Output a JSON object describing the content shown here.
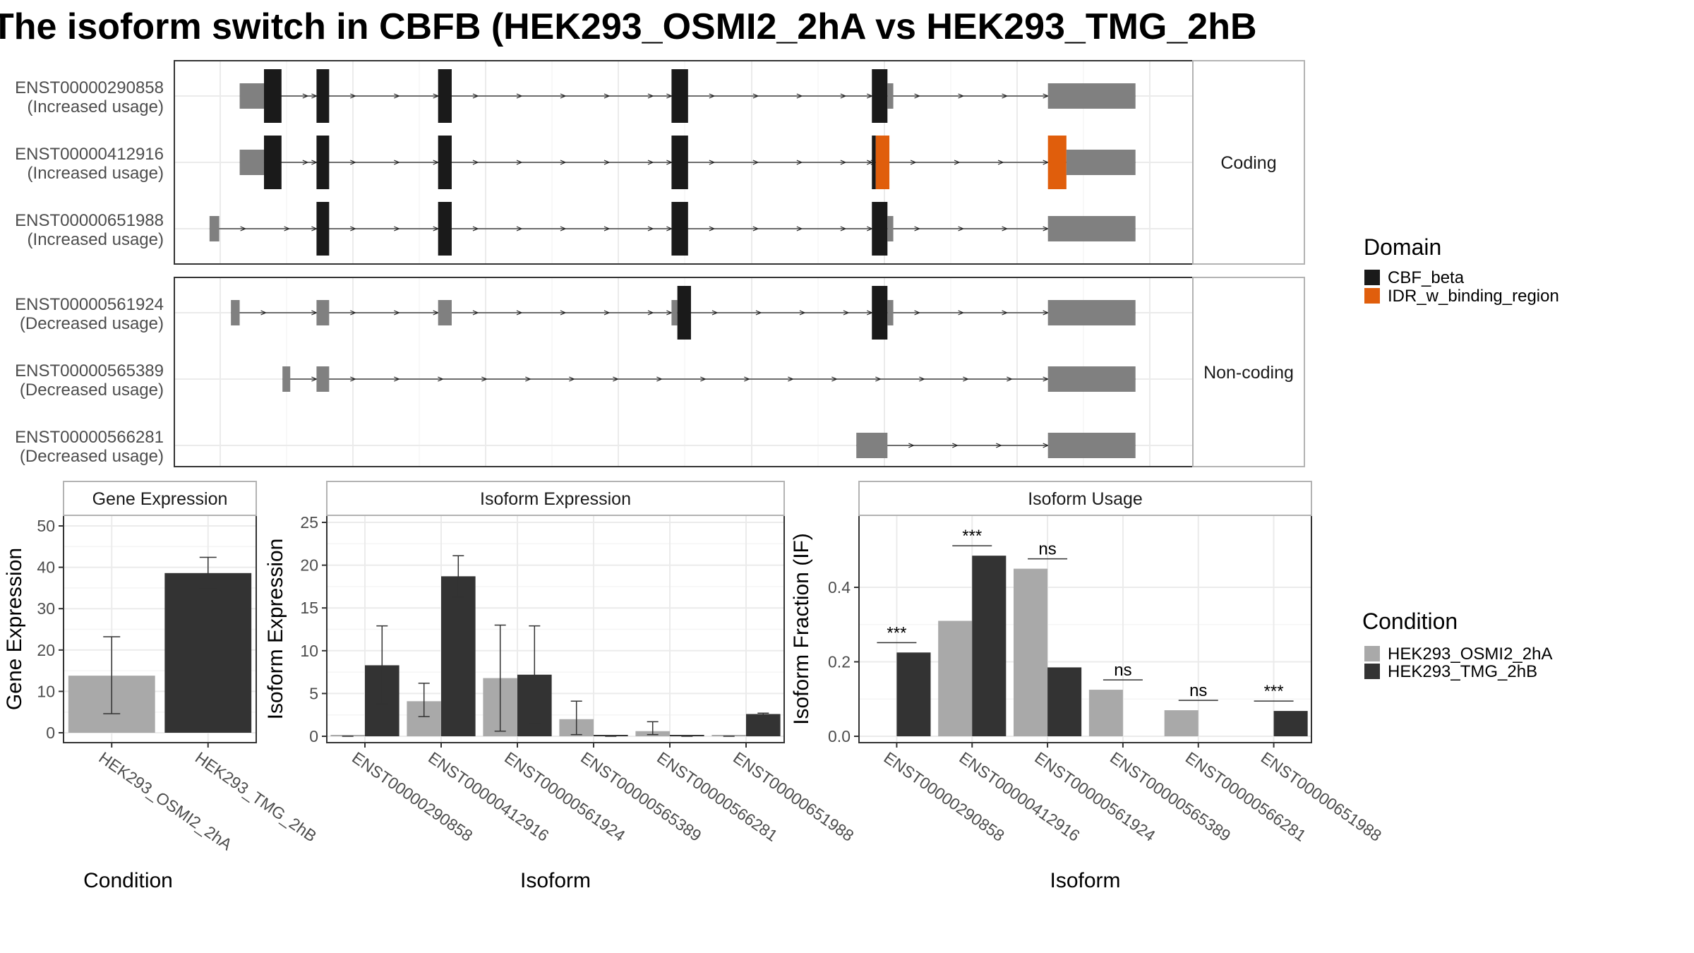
{
  "title": "The isoform switch in CBFB (HEK293_OSMI2_2hA vs HEK293_TMG_2hB",
  "colors": {
    "cds": "#1a1a1a",
    "utr": "#808080",
    "idr": "#e05e0c",
    "cond_a": "#a9a9a9",
    "cond_b": "#333333",
    "grid": "#ebebeb",
    "panel_border": "#333333",
    "strip_border": "#b3b3b3"
  },
  "structure": {
    "panels": [
      {
        "label": "Coding",
        "transcripts": [
          {
            "id": "ENST00000290858",
            "usage": "(Increased usage)",
            "exons": [
              {
                "s": 0.02,
                "e": 0.045,
                "t": "utr"
              },
              {
                "s": 0.045,
                "e": 0.063,
                "t": "cds"
              },
              {
                "s": 0.099,
                "e": 0.112,
                "t": "cds"
              },
              {
                "s": 0.224,
                "e": 0.238,
                "t": "cds"
              },
              {
                "s": 0.464,
                "e": 0.481,
                "t": "cds"
              },
              {
                "s": 0.67,
                "e": 0.686,
                "t": "cds"
              },
              {
                "s": 0.686,
                "e": 0.692,
                "t": "utr"
              },
              {
                "s": 0.851,
                "e": 0.941,
                "t": "utr"
              }
            ]
          },
          {
            "id": "ENST00000412916",
            "usage": "(Increased usage)",
            "exons": [
              {
                "s": 0.02,
                "e": 0.045,
                "t": "utr"
              },
              {
                "s": 0.045,
                "e": 0.063,
                "t": "cds"
              },
              {
                "s": 0.099,
                "e": 0.112,
                "t": "cds"
              },
              {
                "s": 0.224,
                "e": 0.238,
                "t": "cds"
              },
              {
                "s": 0.464,
                "e": 0.481,
                "t": "cds"
              },
              {
                "s": 0.67,
                "e": 0.674,
                "t": "cds"
              },
              {
                "s": 0.674,
                "e": 0.688,
                "t": "idr"
              },
              {
                "s": 0.851,
                "e": 0.87,
                "t": "idr"
              },
              {
                "s": 0.87,
                "e": 0.941,
                "t": "utr"
              }
            ]
          },
          {
            "id": "ENST00000651988",
            "usage": "(Increased usage)",
            "exons": [
              {
                "s": -0.011,
                "e": -0.001,
                "t": "utr"
              },
              {
                "s": 0.099,
                "e": 0.112,
                "t": "cds"
              },
              {
                "s": 0.224,
                "e": 0.238,
                "t": "cds"
              },
              {
                "s": 0.464,
                "e": 0.481,
                "t": "cds"
              },
              {
                "s": 0.67,
                "e": 0.686,
                "t": "cds"
              },
              {
                "s": 0.686,
                "e": 0.692,
                "t": "utr"
              },
              {
                "s": 0.851,
                "e": 0.941,
                "t": "utr"
              }
            ]
          }
        ]
      },
      {
        "label": "Non-coding",
        "transcripts": [
          {
            "id": "ENST00000561924",
            "usage": "(Decreased usage)",
            "exons": [
              {
                "s": 0.011,
                "e": 0.02,
                "t": "utr"
              },
              {
                "s": 0.099,
                "e": 0.112,
                "t": "utr"
              },
              {
                "s": 0.224,
                "e": 0.238,
                "t": "utr"
              },
              {
                "s": 0.464,
                "e": 0.47,
                "t": "utr"
              },
              {
                "s": 0.47,
                "e": 0.484,
                "t": "cds"
              },
              {
                "s": 0.67,
                "e": 0.686,
                "t": "cds"
              },
              {
                "s": 0.686,
                "e": 0.692,
                "t": "utr"
              },
              {
                "s": 0.851,
                "e": 0.941,
                "t": "utr"
              }
            ]
          },
          {
            "id": "ENST00000565389",
            "usage": "(Decreased usage)",
            "exons": [
              {
                "s": 0.064,
                "e": 0.072,
                "t": "utr"
              },
              {
                "s": 0.099,
                "e": 0.112,
                "t": "utr"
              },
              {
                "s": 0.851,
                "e": 0.941,
                "t": "utr"
              }
            ]
          },
          {
            "id": "ENST00000566281",
            "usage": "(Decreased usage)",
            "exons": [
              {
                "s": 0.654,
                "e": 0.686,
                "t": "utr"
              },
              {
                "s": 0.851,
                "e": 0.941,
                "t": "utr"
              }
            ]
          }
        ]
      }
    ],
    "legend": {
      "title": "Domain",
      "items": [
        {
          "label": "CBF_beta",
          "color": "#1a1a1a"
        },
        {
          "label": "IDR_w_binding_region",
          "color": "#e05e0c"
        }
      ]
    }
  },
  "chart_data": [
    {
      "type": "bar",
      "title": "Gene Expression",
      "xlabel": "Condition",
      "ylabel": "Gene Expression",
      "ylim": [
        0,
        50
      ],
      "yticks": [
        0,
        10,
        20,
        30,
        40,
        50
      ],
      "categories": [
        "HEK293_OSMI2_2hA",
        "HEK293_TMG_2hB"
      ],
      "values": [
        13.8,
        38.6
      ],
      "errors": [
        [
          4.6,
          23.2
        ],
        [
          34.8,
          42.4
        ]
      ]
    },
    {
      "type": "bar",
      "title": "Isoform Expression",
      "xlabel": "Isoform",
      "ylabel": "Isoform Expression",
      "ylim": [
        0,
        25
      ],
      "yticks": [
        0,
        5,
        10,
        15,
        20,
        25
      ],
      "categories": [
        "ENST00000290858",
        "ENST00000412916",
        "ENST00000561924",
        "ENST00000565389",
        "ENST00000566281",
        "ENST00000651988"
      ],
      "series": [
        {
          "name": "HEK293_OSMI2_2hA",
          "values": [
            0,
            4.1,
            6.8,
            2.0,
            0.6,
            0
          ],
          "errors": [
            [
              0,
              0
            ],
            [
              2.3,
              6.2
            ],
            [
              0.6,
              13.0
            ],
            [
              0.2,
              4.1
            ],
            [
              0.2,
              1.7
            ],
            [
              0,
              0
            ]
          ]
        },
        {
          "name": "HEK293_TMG_2hB",
          "values": [
            8.3,
            18.7,
            7.2,
            0,
            0,
            2.6
          ],
          "errors": [
            [
              3.8,
              12.9
            ],
            [
              16.3,
              21.1
            ],
            [
              1.5,
              12.9
            ],
            [
              0,
              0
            ],
            [
              0,
              0
            ],
            [
              2.5,
              2.7
            ]
          ]
        }
      ]
    },
    {
      "type": "bar",
      "title": "Isoform Usage",
      "xlabel": "Isoform",
      "ylabel": "Isoform Fraction (IF)",
      "ylim": [
        -0.03,
        0.57
      ],
      "yticks": [
        0.0,
        0.2,
        0.4
      ],
      "categories": [
        "ENST00000290858",
        "ENST00000412916",
        "ENST00000561924",
        "ENST00000565389",
        "ENST00000566281",
        "ENST00000651988"
      ],
      "series": [
        {
          "name": "HEK293_OSMI2_2hA",
          "values": [
            0,
            0.31,
            0.45,
            0.125,
            0.07,
            0
          ]
        },
        {
          "name": "HEK293_TMG_2hB",
          "values": [
            0.225,
            0.485,
            0.185,
            0,
            0,
            0.068
          ]
        }
      ],
      "significance": [
        "***",
        "***",
        "ns",
        "ns",
        "ns",
        "***"
      ]
    }
  ],
  "condition_legend": {
    "title": "Condition",
    "items": [
      {
        "label": "HEK293_OSMI2_2hA",
        "color": "#a9a9a9"
      },
      {
        "label": "HEK293_TMG_2hB",
        "color": "#333333"
      }
    ]
  }
}
